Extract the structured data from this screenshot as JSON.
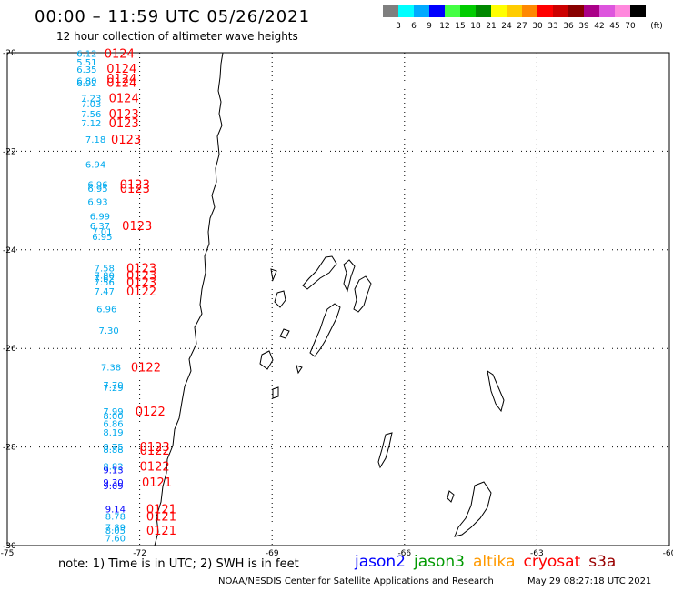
{
  "header": {
    "title": "00:00 – 11:59 UTC 05/26/2021",
    "subtitle": "12 hour collection of altimeter wave heights"
  },
  "colorbar": {
    "unit": "(ft)",
    "entries": [
      {
        "label": "3",
        "color": "#7f7f7f"
      },
      {
        "label": "6",
        "color": "#00ffff"
      },
      {
        "label": "9",
        "color": "#00aaff"
      },
      {
        "label": "12",
        "color": "#0000ff"
      },
      {
        "label": "15",
        "color": "#44ff44"
      },
      {
        "label": "18",
        "color": "#00cc00"
      },
      {
        "label": "21",
        "color": "#008800"
      },
      {
        "label": "24",
        "color": "#ffff00"
      },
      {
        "label": "27",
        "color": "#ffcc00"
      },
      {
        "label": "30",
        "color": "#ff8800"
      },
      {
        "label": "33",
        "color": "#ff0000"
      },
      {
        "label": "36",
        "color": "#cc0000"
      },
      {
        "label": "39",
        "color": "#880000"
      },
      {
        "label": "42",
        "color": "#aa0088"
      },
      {
        "label": "45",
        "color": "#dd55dd"
      },
      {
        "label": "70",
        "color": "#ff88dd"
      },
      {
        "label": "",
        "color": "#000000"
      }
    ]
  },
  "map": {
    "lon_range": [
      -75,
      -60
    ],
    "lat_range": [
      -30,
      -20
    ],
    "lon_ticks": [
      "-75",
      "-72",
      "-69",
      "-66",
      "-63",
      "-60"
    ],
    "lat_ticks": [
      "-20",
      "-22",
      "-24",
      "-26",
      "-28",
      "-30"
    ],
    "colors": {
      "swh_cyan": "#00aaee",
      "swh_blue": "#0000ff",
      "pass_red": "#ff0000"
    },
    "swh_labels": [
      {
        "t": "6.12",
        "lon": -73.2,
        "lat": -20.01
      },
      {
        "t": "5.51",
        "lon": -73.2,
        "lat": -20.18
      },
      {
        "t": "6.35",
        "lon": -73.2,
        "lat": -20.33
      },
      {
        "t": "6.80",
        "lon": -73.2,
        "lat": -20.56
      },
      {
        "t": "6.92",
        "lon": -73.2,
        "lat": -20.61
      },
      {
        "t": "7.23",
        "lon": -73.1,
        "lat": -20.91
      },
      {
        "t": "7.03",
        "lon": -73.1,
        "lat": -21.03
      },
      {
        "t": "7.56",
        "lon": -73.1,
        "lat": -21.24
      },
      {
        "t": "7.12",
        "lon": -73.1,
        "lat": -21.42
      },
      {
        "t": "7.18",
        "lon": -73.0,
        "lat": -21.75
      },
      {
        "t": "6.94",
        "lon": -73.0,
        "lat": -22.26
      },
      {
        "t": "6.96",
        "lon": -72.95,
        "lat": -22.67
      },
      {
        "t": "6.95",
        "lon": -72.95,
        "lat": -22.75
      },
      {
        "t": "6.93",
        "lon": -72.95,
        "lat": -23.02
      },
      {
        "t": "6.99",
        "lon": -72.9,
        "lat": -23.31
      },
      {
        "t": "6.37",
        "lon": -72.9,
        "lat": -23.51
      },
      {
        "t": "7.01",
        "lon": -72.85,
        "lat": -23.63
      },
      {
        "t": "6.95",
        "lon": -72.85,
        "lat": -23.73
      },
      {
        "t": "7.58",
        "lon": -72.8,
        "lat": -24.36
      },
      {
        "t": "7.80",
        "lon": -72.8,
        "lat": -24.51
      },
      {
        "t": "7.62",
        "lon": -72.8,
        "lat": -24.58
      },
      {
        "t": "7.56",
        "lon": -72.8,
        "lat": -24.65
      },
      {
        "t": "7.47",
        "lon": -72.8,
        "lat": -24.83
      },
      {
        "t": "6.96",
        "lon": -72.75,
        "lat": -25.19
      },
      {
        "t": "7.30",
        "lon": -72.7,
        "lat": -25.63
      },
      {
        "t": "7.38",
        "lon": -72.65,
        "lat": -26.37
      },
      {
        "t": "7.70",
        "lon": -72.6,
        "lat": -26.73
      },
      {
        "t": "7.29",
        "lon": -72.6,
        "lat": -26.79
      },
      {
        "t": "7.99",
        "lon": -72.6,
        "lat": -27.27
      },
      {
        "t": "8.00",
        "lon": -72.6,
        "lat": -27.36
      },
      {
        "t": "6.86",
        "lon": -72.6,
        "lat": -27.52
      },
      {
        "t": "8.19",
        "lon": -72.6,
        "lat": -27.69
      },
      {
        "t": "8.75",
        "lon": -72.6,
        "lat": -27.99
      },
      {
        "t": "8.88",
        "lon": -72.6,
        "lat": -28.04
      },
      {
        "t": "8.82",
        "lon": -72.6,
        "lat": -28.39
      },
      {
        "t": "9.13",
        "lon": -72.6,
        "lat": -28.46
      },
      {
        "t": "9.30",
        "lon": -72.6,
        "lat": -28.71
      },
      {
        "t": "9.09",
        "lon": -72.6,
        "lat": -28.78
      },
      {
        "t": "9.14",
        "lon": -72.55,
        "lat": -29.25
      },
      {
        "t": "8.78",
        "lon": -72.55,
        "lat": -29.4
      },
      {
        "t": "7.89",
        "lon": -72.55,
        "lat": -29.62
      },
      {
        "t": "8.05",
        "lon": -72.55,
        "lat": -29.69
      },
      {
        "t": "7.60",
        "lon": -72.55,
        "lat": -29.84
      }
    ],
    "pass_labels": [
      {
        "t": "0124",
        "lon": -72.8,
        "lat": -20.01
      },
      {
        "t": "0124",
        "lon": -72.75,
        "lat": -20.31
      },
      {
        "t": "0124",
        "lon": -72.75,
        "lat": -20.52
      },
      {
        "t": "0124",
        "lon": -72.75,
        "lat": -20.6
      },
      {
        "t": "0124",
        "lon": -72.7,
        "lat": -20.91
      },
      {
        "t": "0123",
        "lon": -72.7,
        "lat": -21.24
      },
      {
        "t": "0123",
        "lon": -72.7,
        "lat": -21.42
      },
      {
        "t": "0123",
        "lon": -72.65,
        "lat": -21.75
      },
      {
        "t": "0123",
        "lon": -72.45,
        "lat": -22.67
      },
      {
        "t": "0123",
        "lon": -72.45,
        "lat": -22.75
      },
      {
        "t": "0123",
        "lon": -72.4,
        "lat": -23.51
      },
      {
        "t": "0123",
        "lon": -72.3,
        "lat": -24.36
      },
      {
        "t": "0123",
        "lon": -72.3,
        "lat": -24.51
      },
      {
        "t": "0123",
        "lon": -72.3,
        "lat": -24.65
      },
      {
        "t": "0122",
        "lon": -72.3,
        "lat": -24.83
      },
      {
        "t": "0122",
        "lon": -72.2,
        "lat": -26.37
      },
      {
        "t": "0122",
        "lon": -72.1,
        "lat": -27.27
      },
      {
        "t": "0123",
        "lon": -72.0,
        "lat": -27.99
      },
      {
        "t": "0122",
        "lon": -72.0,
        "lat": -28.06
      },
      {
        "t": "0122",
        "lon": -72.0,
        "lat": -28.39
      },
      {
        "t": "0121",
        "lon": -71.95,
        "lat": -28.71
      },
      {
        "t": "0121",
        "lon": -71.85,
        "lat": -29.25
      },
      {
        "t": "0121",
        "lon": -71.85,
        "lat": -29.4
      },
      {
        "t": "0121",
        "lon": -71.85,
        "lat": -29.69
      }
    ]
  },
  "footer": {
    "note": "note:  1) Time is in UTC;  2) SWH is in feet",
    "satellites": [
      {
        "name": "jason2",
        "color": "#0000ff"
      },
      {
        "name": "jason3",
        "color": "#009900"
      },
      {
        "name": "altika",
        "color": "#ff9900"
      },
      {
        "name": "cryosat",
        "color": "#ff0000"
      },
      {
        "name": "s3a",
        "color": "#990000"
      }
    ],
    "org": "NOAA/NESDIS Center for Satellite Applications and Research",
    "timestamp": "May 29 08:27:18 UTC 2021"
  }
}
